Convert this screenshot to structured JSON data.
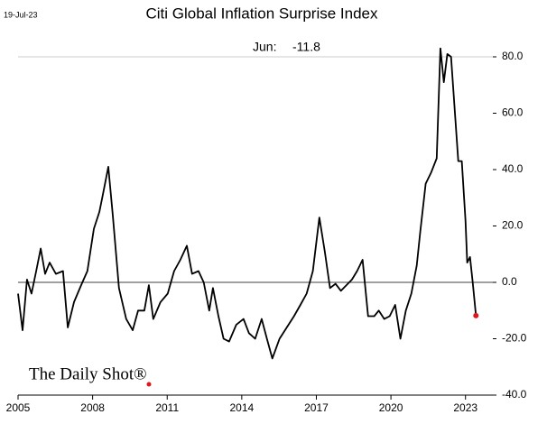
{
  "chart_data": {
    "type": "line",
    "title": "Citi Global Inflation Surprise Index",
    "date_label": "19-Jul-23",
    "annotation": {
      "label": "Jun:",
      "value": -11.8
    },
    "source_logo": "The Daily Shot®",
    "x": [
      2005.0,
      2005.18,
      2005.36,
      2005.54,
      2005.73,
      2005.91,
      2006.09,
      2006.27,
      2006.52,
      2006.81,
      2007.0,
      2007.25,
      2007.54,
      2007.79,
      2008.05,
      2008.27,
      2008.41,
      2008.63,
      2008.81,
      2009.06,
      2009.35,
      2009.61,
      2009.83,
      2010.08,
      2010.26,
      2010.44,
      2010.73,
      2011.02,
      2011.28,
      2011.53,
      2011.79,
      2012.0,
      2012.26,
      2012.47,
      2012.69,
      2012.84,
      2013.06,
      2013.27,
      2013.49,
      2013.78,
      2014.07,
      2014.29,
      2014.54,
      2014.8,
      2015.01,
      2015.23,
      2015.52,
      2015.81,
      2016.1,
      2016.36,
      2016.61,
      2016.86,
      2017.12,
      2017.34,
      2017.55,
      2017.77,
      2017.99,
      2018.21,
      2018.43,
      2018.64,
      2018.86,
      2019.08,
      2019.33,
      2019.51,
      2019.73,
      2019.95,
      2020.17,
      2020.38,
      2020.6,
      2020.82,
      2021.04,
      2021.18,
      2021.4,
      2021.62,
      2021.84,
      2021.99,
      2022.13,
      2022.27,
      2022.42,
      2022.56,
      2022.71,
      2022.85,
      2023.0,
      2023.07,
      2023.18,
      2023.29,
      2023.42
    ],
    "series": [
      {
        "name": "Citi Global Inflation Surprise Index",
        "color": "#000000",
        "values": [
          -4,
          -17,
          1,
          -4,
          4,
          12,
          3,
          7,
          3,
          4,
          -16,
          -7,
          -1,
          4,
          19,
          25,
          31,
          41,
          24,
          -2,
          -13,
          -17,
          -10,
          -10,
          -1,
          -13,
          -7,
          -4,
          4,
          8,
          13,
          3,
          4,
          0,
          -10,
          -2,
          -12,
          -20,
          -21,
          -15,
          -13,
          -18,
          -20,
          -13,
          -20,
          -27,
          -20,
          -16,
          -12,
          -8,
          -4,
          4,
          23,
          11,
          -2,
          -0.5,
          -3,
          -1,
          1,
          4,
          8,
          -12,
          -12,
          -10,
          -13,
          -12,
          -8,
          -20,
          -10,
          -4,
          6,
          18,
          35,
          39,
          44,
          83,
          71,
          81,
          80,
          62,
          43,
          43,
          22,
          7,
          9,
          0,
          -11.8
        ]
      }
    ],
    "last_point_color": "#e0161b",
    "zero_line": true,
    "xlim": [
      2005,
      2024.1
    ],
    "xticks": [
      2005,
      2008,
      2011,
      2014,
      2017,
      2020,
      2023
    ],
    "ylim": [
      -40,
      88
    ],
    "yticks": [
      {
        "value": -40,
        "label": "-40.0"
      },
      {
        "value": -20,
        "label": "-20.0"
      },
      {
        "value": 0,
        "label": "0.0"
      },
      {
        "value": 20,
        "label": "20.0"
      },
      {
        "value": 40,
        "label": "40.0"
      },
      {
        "value": 60,
        "label": "60.0"
      },
      {
        "value": 80,
        "label": "80.0"
      }
    ]
  }
}
